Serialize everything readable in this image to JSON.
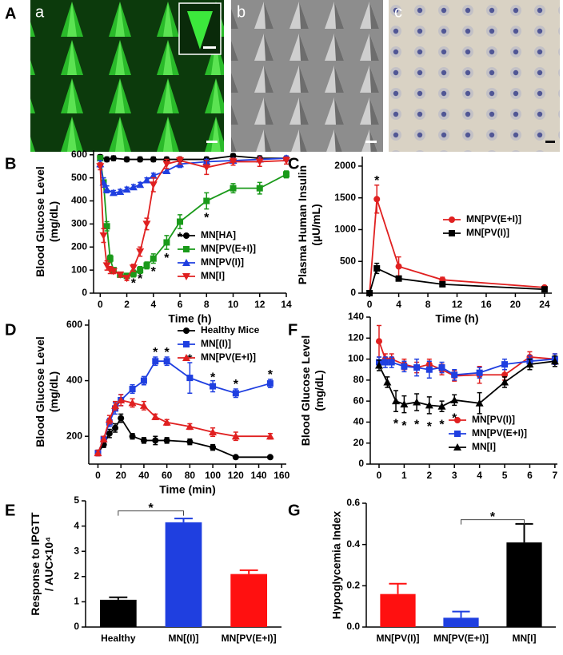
{
  "image_panels": {
    "panel_label": "A",
    "images": [
      {
        "label": "a"
      },
      {
        "label": "b"
      },
      {
        "label": "c"
      }
    ]
  },
  "chart_data": [
    {
      "type": "line",
      "panel_label": "B",
      "xlabel": "Time (h)",
      "ylabel": [
        "Blood Glucose Level",
        "(mg/dL)"
      ],
      "xlim": [
        -0.5,
        14
      ],
      "xticks": [
        0,
        2,
        4,
        6,
        8,
        10,
        12,
        14
      ],
      "ylim": [
        0,
        620
      ],
      "yticks": [
        0,
        100,
        200,
        300,
        400,
        500,
        600
      ],
      "legend": "lower-right",
      "series": [
        {
          "name": "MN[HA]",
          "color": "#000000",
          "marker": "circle",
          "x": [
            0,
            0.5,
            1,
            2,
            3,
            4,
            5,
            6,
            8,
            10,
            12,
            14
          ],
          "values": [
            590,
            580,
            585,
            580,
            580,
            580,
            580,
            580,
            580,
            595,
            585,
            585
          ],
          "errors": [
            10,
            10,
            10,
            10,
            10,
            10,
            10,
            10,
            10,
            10,
            10,
            10
          ]
        },
        {
          "name": "MN[PV(E+I)]",
          "color": "#1a9a1a",
          "marker": "square",
          "x": [
            0,
            0.25,
            0.5,
            0.75,
            1,
            1.5,
            2,
            2.5,
            3,
            3.5,
            4,
            5,
            6,
            8,
            10,
            12,
            14
          ],
          "values": [
            585,
            480,
            290,
            150,
            100,
            80,
            75,
            85,
            100,
            120,
            150,
            220,
            310,
            400,
            455,
            455,
            515
          ],
          "errors": [
            10,
            20,
            20,
            15,
            10,
            10,
            10,
            15,
            15,
            15,
            20,
            30,
            30,
            35,
            20,
            25,
            15
          ]
        },
        {
          "name": "MN[PV(I)]",
          "color": "#1f3fe0",
          "marker": "triangle",
          "x": [
            0,
            0.25,
            0.5,
            1,
            1.5,
            2,
            2.5,
            3,
            3.5,
            4,
            5,
            6,
            8,
            10,
            12,
            14
          ],
          "values": [
            560,
            480,
            450,
            435,
            440,
            450,
            460,
            470,
            490,
            510,
            530,
            560,
            570,
            575,
            580,
            585
          ],
          "errors": [
            15,
            20,
            15,
            10,
            10,
            10,
            10,
            10,
            10,
            10,
            10,
            15,
            10,
            10,
            10,
            10
          ]
        },
        {
          "name": "MN[I]",
          "color": "#e02020",
          "marker": "down-triangle",
          "x": [
            0,
            0.25,
            0.5,
            0.75,
            1,
            1.5,
            2,
            2.5,
            3,
            3.5,
            4,
            5,
            6,
            8,
            10,
            12,
            14
          ],
          "values": [
            550,
            250,
            120,
            100,
            95,
            80,
            65,
            110,
            180,
            300,
            470,
            560,
            575,
            545,
            570,
            570,
            575
          ],
          "errors": [
            15,
            30,
            20,
            15,
            10,
            10,
            10,
            15,
            20,
            25,
            30,
            20,
            15,
            30,
            15,
            20,
            15
          ]
        }
      ],
      "annotations": [
        {
          "text": "*",
          "x": 2.5,
          "y": 40
        },
        {
          "text": "*",
          "x": 3,
          "y": 60
        },
        {
          "text": "*",
          "x": 4,
          "y": 90
        },
        {
          "text": "*",
          "x": 5,
          "y": 150
        },
        {
          "text": "*",
          "x": 6,
          "y": 240
        },
        {
          "text": "*",
          "x": 8,
          "y": 325
        }
      ]
    },
    {
      "type": "line",
      "panel_label": "C",
      "xlabel": "Time (h)",
      "ylabel": [
        "Plasma Human Insulin",
        "(µU/mL)"
      ],
      "xlim": [
        -1,
        25
      ],
      "xticks": [
        0,
        4,
        8,
        12,
        16,
        20,
        24
      ],
      "ylim": [
        0,
        2150
      ],
      "yticks": [
        0,
        500,
        1000,
        1500,
        2000
      ],
      "legend": "center-right",
      "series": [
        {
          "name": "MN[PV(E+I)]",
          "color": "#e02020",
          "marker": "circle",
          "x": [
            0,
            1,
            4,
            10,
            24
          ],
          "values": [
            0,
            1480,
            420,
            210,
            90
          ],
          "errors": [
            0,
            220,
            150,
            40,
            20
          ]
        },
        {
          "name": "MN[PV(I)]",
          "color": "#000000",
          "marker": "square",
          "x": [
            0,
            1,
            4,
            10,
            24
          ],
          "values": [
            0,
            390,
            230,
            140,
            60
          ],
          "errors": [
            0,
            80,
            30,
            20,
            10
          ]
        }
      ],
      "annotations": [
        {
          "text": "*",
          "x": 1,
          "y": 1760
        }
      ]
    },
    {
      "type": "line",
      "panel_label": "D",
      "xlabel": "Time (min)",
      "ylabel": [
        "Blood Glucose Level",
        "(mg/dL)"
      ],
      "xlim": [
        -8,
        164
      ],
      "xticks": [
        0,
        20,
        40,
        60,
        80,
        100,
        120,
        140,
        160
      ],
      "ylim": [
        100,
        620
      ],
      "yticks": [
        200,
        400,
        600
      ],
      "legend": "upper-right",
      "series": [
        {
          "name": "Healthy Mice",
          "color": "#000000",
          "marker": "circle",
          "x": [
            0,
            5,
            10,
            15,
            20,
            30,
            40,
            50,
            60,
            80,
            100,
            120,
            150
          ],
          "values": [
            140,
            170,
            210,
            230,
            265,
            200,
            185,
            185,
            185,
            180,
            160,
            125,
            125
          ],
          "errors": [
            10,
            10,
            15,
            15,
            15,
            10,
            10,
            15,
            10,
            10,
            10,
            5,
            5
          ]
        },
        {
          "name": "MN[(I)]",
          "color": "#1f3fe0",
          "marker": "square",
          "x": [
            0,
            5,
            10,
            15,
            20,
            30,
            40,
            50,
            60,
            80,
            100,
            120,
            150
          ],
          "values": [
            140,
            190,
            250,
            300,
            330,
            370,
            400,
            470,
            470,
            410,
            380,
            355,
            390
          ],
          "errors": [
            10,
            10,
            15,
            20,
            20,
            15,
            15,
            15,
            15,
            55,
            20,
            15,
            15
          ]
        },
        {
          "name": "MN[PV(E+I)]",
          "color": "#e02020",
          "marker": "triangle",
          "x": [
            0,
            5,
            10,
            15,
            20,
            30,
            40,
            50,
            60,
            80,
            100,
            120,
            150
          ],
          "values": [
            140,
            190,
            260,
            310,
            330,
            320,
            310,
            270,
            250,
            235,
            215,
            200,
            200
          ],
          "errors": [
            10,
            10,
            15,
            15,
            20,
            15,
            15,
            10,
            10,
            10,
            15,
            15,
            10
          ]
        }
      ],
      "annotations": [
        {
          "text": "*",
          "x": 50,
          "y": 500
        },
        {
          "text": "*",
          "x": 60,
          "y": 500
        },
        {
          "text": "*",
          "x": 80,
          "y": 475
        },
        {
          "text": "*",
          "x": 100,
          "y": 410
        },
        {
          "text": "*",
          "x": 120,
          "y": 385
        },
        {
          "text": "*",
          "x": 150,
          "y": 420
        }
      ]
    },
    {
      "type": "line",
      "panel_label": "F",
      "ylabel": [
        "Blood Glucose Level",
        "(mg/dL)"
      ],
      "xlim": [
        -0.35,
        7.1
      ],
      "xticks": [
        0,
        1,
        2,
        3,
        4,
        5,
        6,
        7
      ],
      "ylim": [
        0,
        140
      ],
      "yticks": [
        0,
        20,
        40,
        60,
        80,
        100,
        120,
        140
      ],
      "legend": "lower-right",
      "series": [
        {
          "name": "MN[PV(I)]",
          "color": "#e02020",
          "marker": "circle",
          "x": [
            0,
            0.25,
            0.5,
            1,
            1.5,
            2,
            2.5,
            3,
            4,
            5,
            6,
            7
          ],
          "values": [
            117,
            100,
            100,
            95,
            92,
            95,
            90,
            84,
            85,
            85,
            102,
            100
          ],
          "errors": [
            15,
            5,
            5,
            5,
            5,
            5,
            5,
            5,
            8,
            5,
            5,
            5
          ]
        },
        {
          "name": "MN[PV(E+I)]",
          "color": "#1f3fe0",
          "marker": "square",
          "x": [
            0,
            0.25,
            0.5,
            1,
            1.5,
            2,
            2.5,
            3,
            4,
            5,
            6,
            7
          ],
          "values": [
            97,
            97,
            97,
            93,
            92,
            90,
            92,
            85,
            87,
            95,
            98,
            100
          ],
          "errors": [
            5,
            5,
            5,
            5,
            8,
            8,
            5,
            5,
            5,
            5,
            5,
            5
          ]
        },
        {
          "name": "MN[I]",
          "color": "#000000",
          "marker": "triangle",
          "x": [
            0,
            0.33,
            0.67,
            1,
            1.5,
            2,
            2.5,
            3,
            4,
            5,
            6,
            7
          ],
          "values": [
            94,
            78,
            60,
            57,
            59,
            56,
            55,
            61,
            58,
            78,
            95,
            98
          ],
          "errors": [
            5,
            5,
            10,
            8,
            8,
            8,
            5,
            5,
            10,
            5,
            5,
            5
          ]
        }
      ],
      "annotations": [
        {
          "text": "*",
          "x": 0.67,
          "y": 38
        },
        {
          "text": "*",
          "x": 1,
          "y": 36
        },
        {
          "text": "*",
          "x": 1.5,
          "y": 37
        },
        {
          "text": "*",
          "x": 2,
          "y": 35
        },
        {
          "text": "*",
          "x": 2.5,
          "y": 37
        },
        {
          "text": "*",
          "x": 3,
          "y": 43
        }
      ]
    },
    {
      "type": "bar",
      "panel_label": "E",
      "ylabel": [
        "Response to IPGTT",
        "/ AUC×10⁴"
      ],
      "categories": [
        "Healthy",
        "MN[(I)]",
        "MN[PV(E+I)]"
      ],
      "values": [
        1.08,
        4.15,
        2.1
      ],
      "errors": [
        0.1,
        0.15,
        0.15
      ],
      "colors": [
        "#000000",
        "#1f3fe0",
        "#ff1010"
      ],
      "ylim": [
        0,
        5
      ],
      "yticks": [
        0,
        1,
        2,
        3,
        4,
        5
      ],
      "brackets": [
        {
          "from": 0,
          "to": 1,
          "y": 4.6,
          "text": "*"
        }
      ]
    },
    {
      "type": "bar",
      "panel_label": "G",
      "ylabel": [
        "Hypoglycemia Index"
      ],
      "categories": [
        "MN[PV(I)]",
        "MN[PV(E+I)]",
        "MN[I]"
      ],
      "values": [
        0.16,
        0.045,
        0.41
      ],
      "errors": [
        0.05,
        0.03,
        0.09
      ],
      "colors": [
        "#ff1010",
        "#1f3fe0",
        "#000000"
      ],
      "ylim": [
        0,
        0.6
      ],
      "yticks": [
        {
          "value": 0,
          "label": "0.0"
        },
        0.2,
        0.4,
        0.6
      ],
      "brackets": [
        {
          "from": 1,
          "to": 2,
          "y": 0.52,
          "text": "*"
        }
      ]
    }
  ]
}
